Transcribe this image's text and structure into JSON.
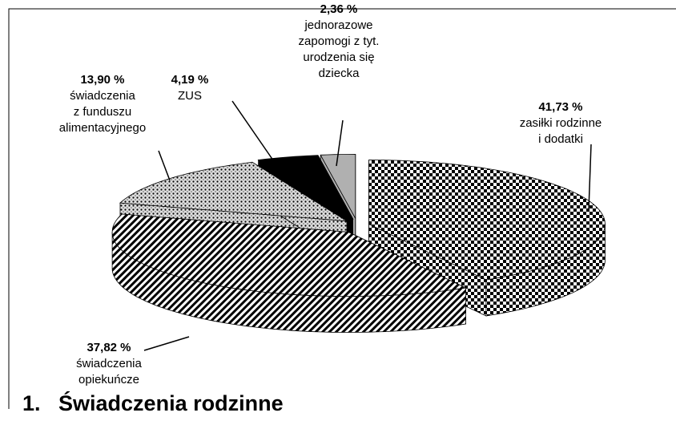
{
  "chart_data": {
    "type": "pie3d",
    "title": "1.   Świadczenia rodzinne",
    "values": [
      41.73,
      37.82,
      13.9,
      4.19,
      2.36
    ],
    "value_labels": [
      "41,73 %",
      "37,82 %",
      "13,90 %",
      "4,19 %",
      "2,36 %"
    ],
    "names": [
      [
        "zasiłki rodzinne",
        "i dodatki"
      ],
      [
        "świadczenia",
        "opiekuńcze"
      ],
      [
        "świadczenia",
        "z funduszu",
        "alimentacyjnego"
      ],
      [
        "ZUS"
      ],
      [
        "jednorazowe",
        "zapomogi z tyt.",
        "urodzenia się",
        "dziecka"
      ]
    ],
    "colors": [
      "#000000",
      "#000000",
      "#000000",
      "#000000",
      "#b0b0b0"
    ],
    "patterns": [
      "checker",
      "stripes",
      "dots",
      "solid",
      "solid"
    ]
  }
}
